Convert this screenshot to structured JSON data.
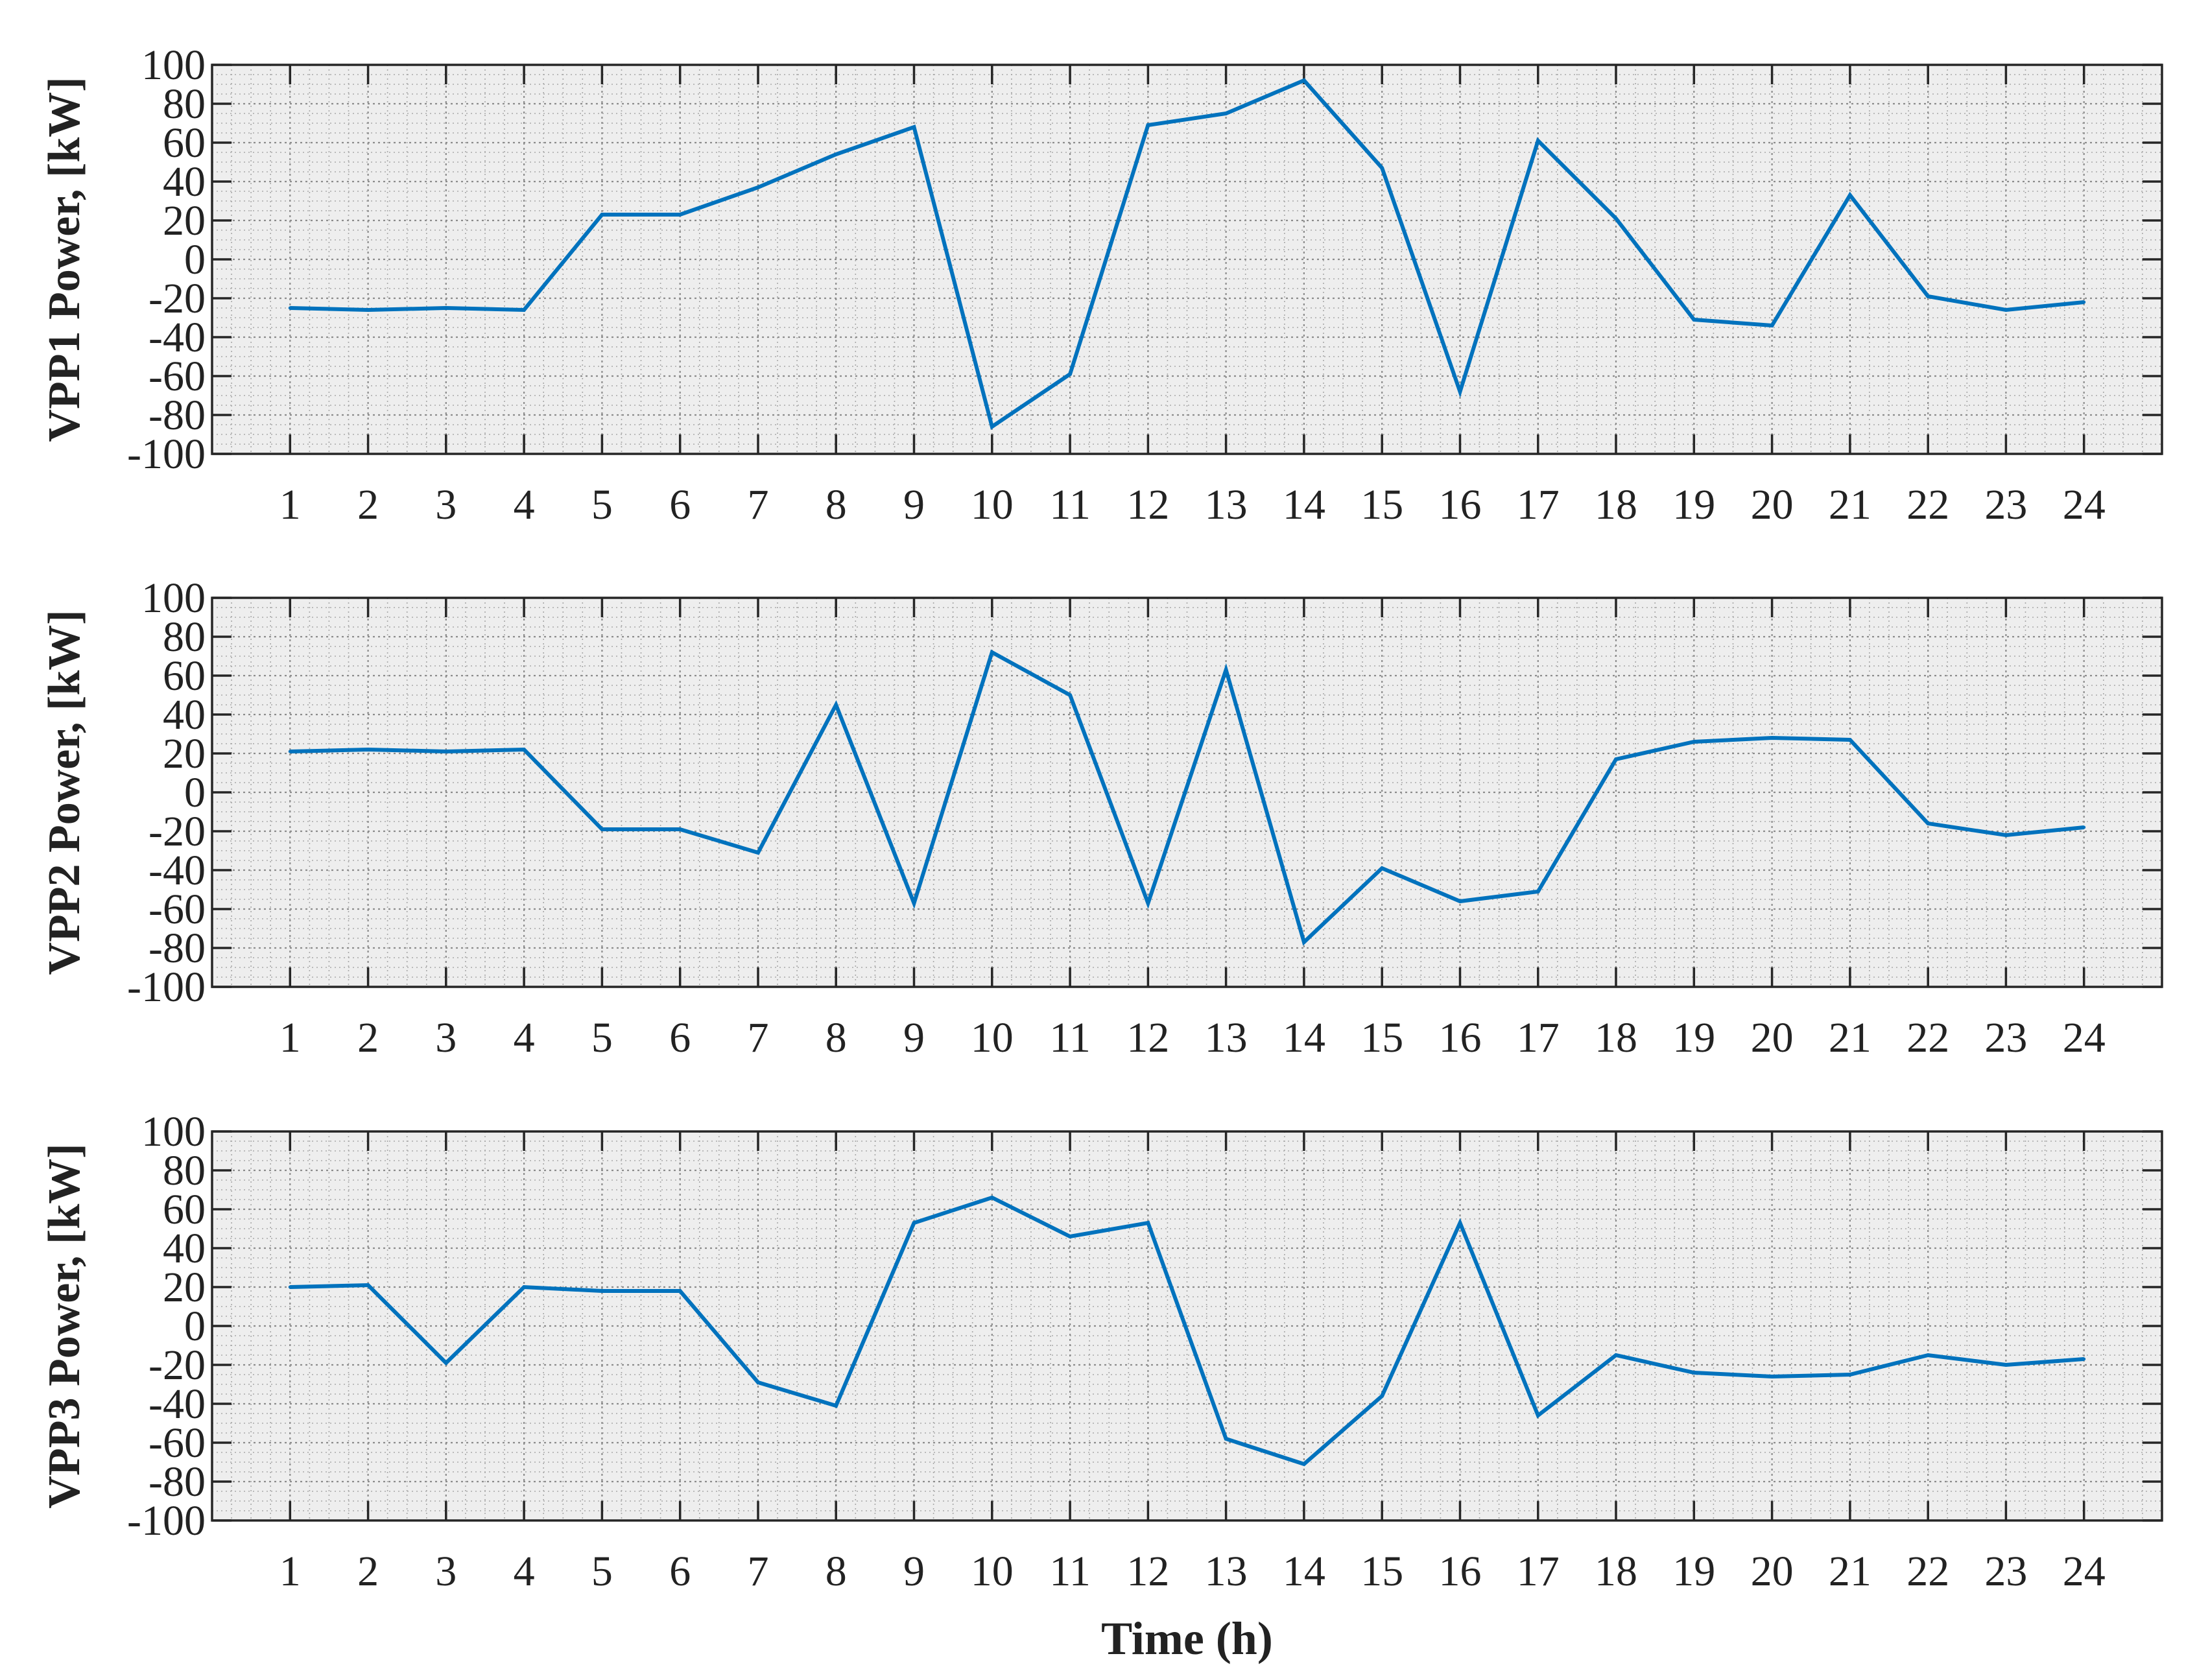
{
  "chart_data": [
    {
      "type": "line",
      "title": "",
      "xlabel": "",
      "ylabel": "VPP1 Power, [kW]",
      "x": [
        1,
        2,
        3,
        4,
        5,
        6,
        7,
        8,
        9,
        10,
        11,
        12,
        13,
        14,
        15,
        16,
        17,
        18,
        19,
        20,
        21,
        22,
        23,
        24
      ],
      "xticklabels": [
        "1",
        "2",
        "3",
        "4",
        "5",
        "6",
        "7",
        "8",
        "9",
        "10",
        "11",
        "12",
        "13",
        "14",
        "15",
        "16",
        "17",
        "18",
        "19",
        "20",
        "21",
        "22",
        "23",
        "24"
      ],
      "yticks": [
        100,
        80,
        60,
        40,
        20,
        0,
        -20,
        -40,
        -60,
        -80,
        -100
      ],
      "yticklabels": [
        "100",
        "80",
        "60",
        "40",
        "20",
        "0",
        "-20",
        "-40",
        "-60",
        "-80",
        "-100"
      ],
      "xlim": [
        0,
        25
      ],
      "ylim": [
        -100,
        100
      ],
      "grid": true,
      "series": [
        {
          "color": "#0072BD",
          "values": [
            -25,
            -26,
            -25,
            -26,
            23,
            23,
            37,
            54,
            68,
            -86,
            -59,
            69,
            75,
            92,
            47,
            -68,
            61,
            21,
            -31,
            -34,
            33,
            -19,
            -26,
            -22
          ]
        }
      ]
    },
    {
      "type": "line",
      "title": "",
      "xlabel": "",
      "ylabel": "VPP2 Power, [kW]",
      "x": [
        1,
        2,
        3,
        4,
        5,
        6,
        7,
        8,
        9,
        10,
        11,
        12,
        13,
        14,
        15,
        16,
        17,
        18,
        19,
        20,
        21,
        22,
        23,
        24
      ],
      "xticklabels": [
        "1",
        "2",
        "3",
        "4",
        "5",
        "6",
        "7",
        "8",
        "9",
        "10",
        "11",
        "12",
        "13",
        "14",
        "15",
        "16",
        "17",
        "18",
        "19",
        "20",
        "21",
        "22",
        "23",
        "24"
      ],
      "yticks": [
        100,
        80,
        60,
        40,
        20,
        0,
        -20,
        -40,
        -60,
        -80,
        -100
      ],
      "yticklabels": [
        "100",
        "80",
        "60",
        "40",
        "20",
        "0",
        "-20",
        "-40",
        "-60",
        "-80",
        "-100"
      ],
      "xlim": [
        0,
        25
      ],
      "ylim": [
        -100,
        100
      ],
      "grid": true,
      "series": [
        {
          "color": "#0072BD",
          "values": [
            21,
            22,
            21,
            22,
            -19,
            -19,
            -31,
            45,
            -57,
            72,
            50,
            -57,
            63,
            -77,
            -39,
            -56,
            -51,
            17,
            26,
            28,
            27,
            -16,
            -22,
            -18
          ]
        }
      ]
    },
    {
      "type": "line",
      "title": "",
      "xlabel": "Time (h)",
      "ylabel": "VPP3 Power, [kW]",
      "x": [
        1,
        2,
        3,
        4,
        5,
        6,
        7,
        8,
        9,
        10,
        11,
        12,
        13,
        14,
        15,
        16,
        17,
        18,
        19,
        20,
        21,
        22,
        23,
        24
      ],
      "xticklabels": [
        "1",
        "2",
        "3",
        "4",
        "5",
        "6",
        "7",
        "8",
        "9",
        "10",
        "11",
        "12",
        "13",
        "14",
        "15",
        "16",
        "17",
        "18",
        "19",
        "20",
        "21",
        "22",
        "23",
        "24"
      ],
      "yticks": [
        100,
        80,
        60,
        40,
        20,
        0,
        -20,
        -40,
        -60,
        -80,
        -100
      ],
      "yticklabels": [
        "100",
        "80",
        "60",
        "40",
        "20",
        "0",
        "-20",
        "-40",
        "-60",
        "-80",
        "-100"
      ],
      "xlim": [
        0,
        25
      ],
      "ylim": [
        -100,
        100
      ],
      "grid": true,
      "series": [
        {
          "color": "#0072BD",
          "values": [
            20,
            21,
            -19,
            20,
            18,
            18,
            -29,
            -41,
            53,
            66,
            46,
            53,
            -58,
            -71,
            -36,
            53,
            -46,
            -15,
            -24,
            -26,
            -25,
            -15,
            -20,
            -17
          ]
        }
      ]
    }
  ]
}
